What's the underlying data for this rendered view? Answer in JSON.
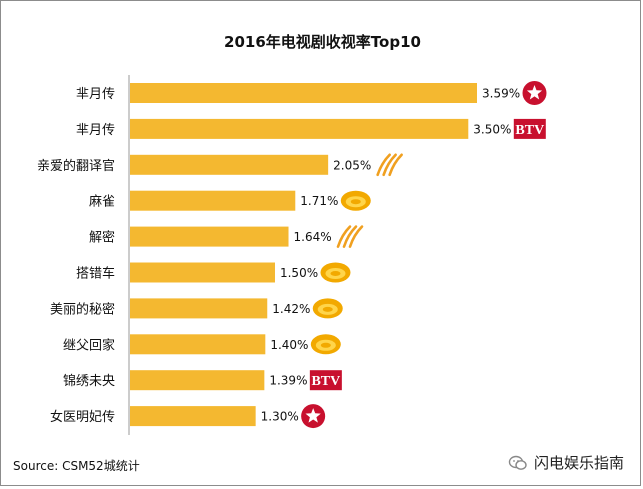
{
  "chart_data": {
    "type": "bar",
    "orientation": "horizontal",
    "title": "2016年电视剧收视率Top10",
    "categories": [
      "芈月传",
      "芈月传",
      "亲爱的翻译官",
      "麻雀",
      "解密",
      "搭错车",
      "美丽的秘密",
      "继父回家",
      "锦绣未央",
      "女医明妃传"
    ],
    "values": [
      3.59,
      3.5,
      2.05,
      1.71,
      1.64,
      1.5,
      1.42,
      1.4,
      1.39,
      1.3
    ],
    "value_labels": [
      "3.59%",
      "3.50%",
      "2.05%",
      "1.71%",
      "1.64%",
      "1.50%",
      "1.42%",
      "1.40%",
      "1.39%",
      "1.30%"
    ],
    "channel_icons": [
      "dragon-tv-icon",
      "btv-icon",
      "zhejiang-tv-icon",
      "hunan-tv-icon",
      "zhejiang-tv-icon",
      "hunan-tv-icon",
      "hunan-tv-icon",
      "hunan-tv-icon",
      "btv-icon",
      "dragon-tv-icon"
    ],
    "xlim": [
      0,
      3.59
    ],
    "grid": false,
    "colors": {
      "bar": "#F4B830",
      "axis": "#999999"
    }
  },
  "footer": {
    "source": "Source: CSM52城统计",
    "brand": "闪电娱乐指南"
  },
  "icons": {
    "btv_text": "BTV"
  }
}
